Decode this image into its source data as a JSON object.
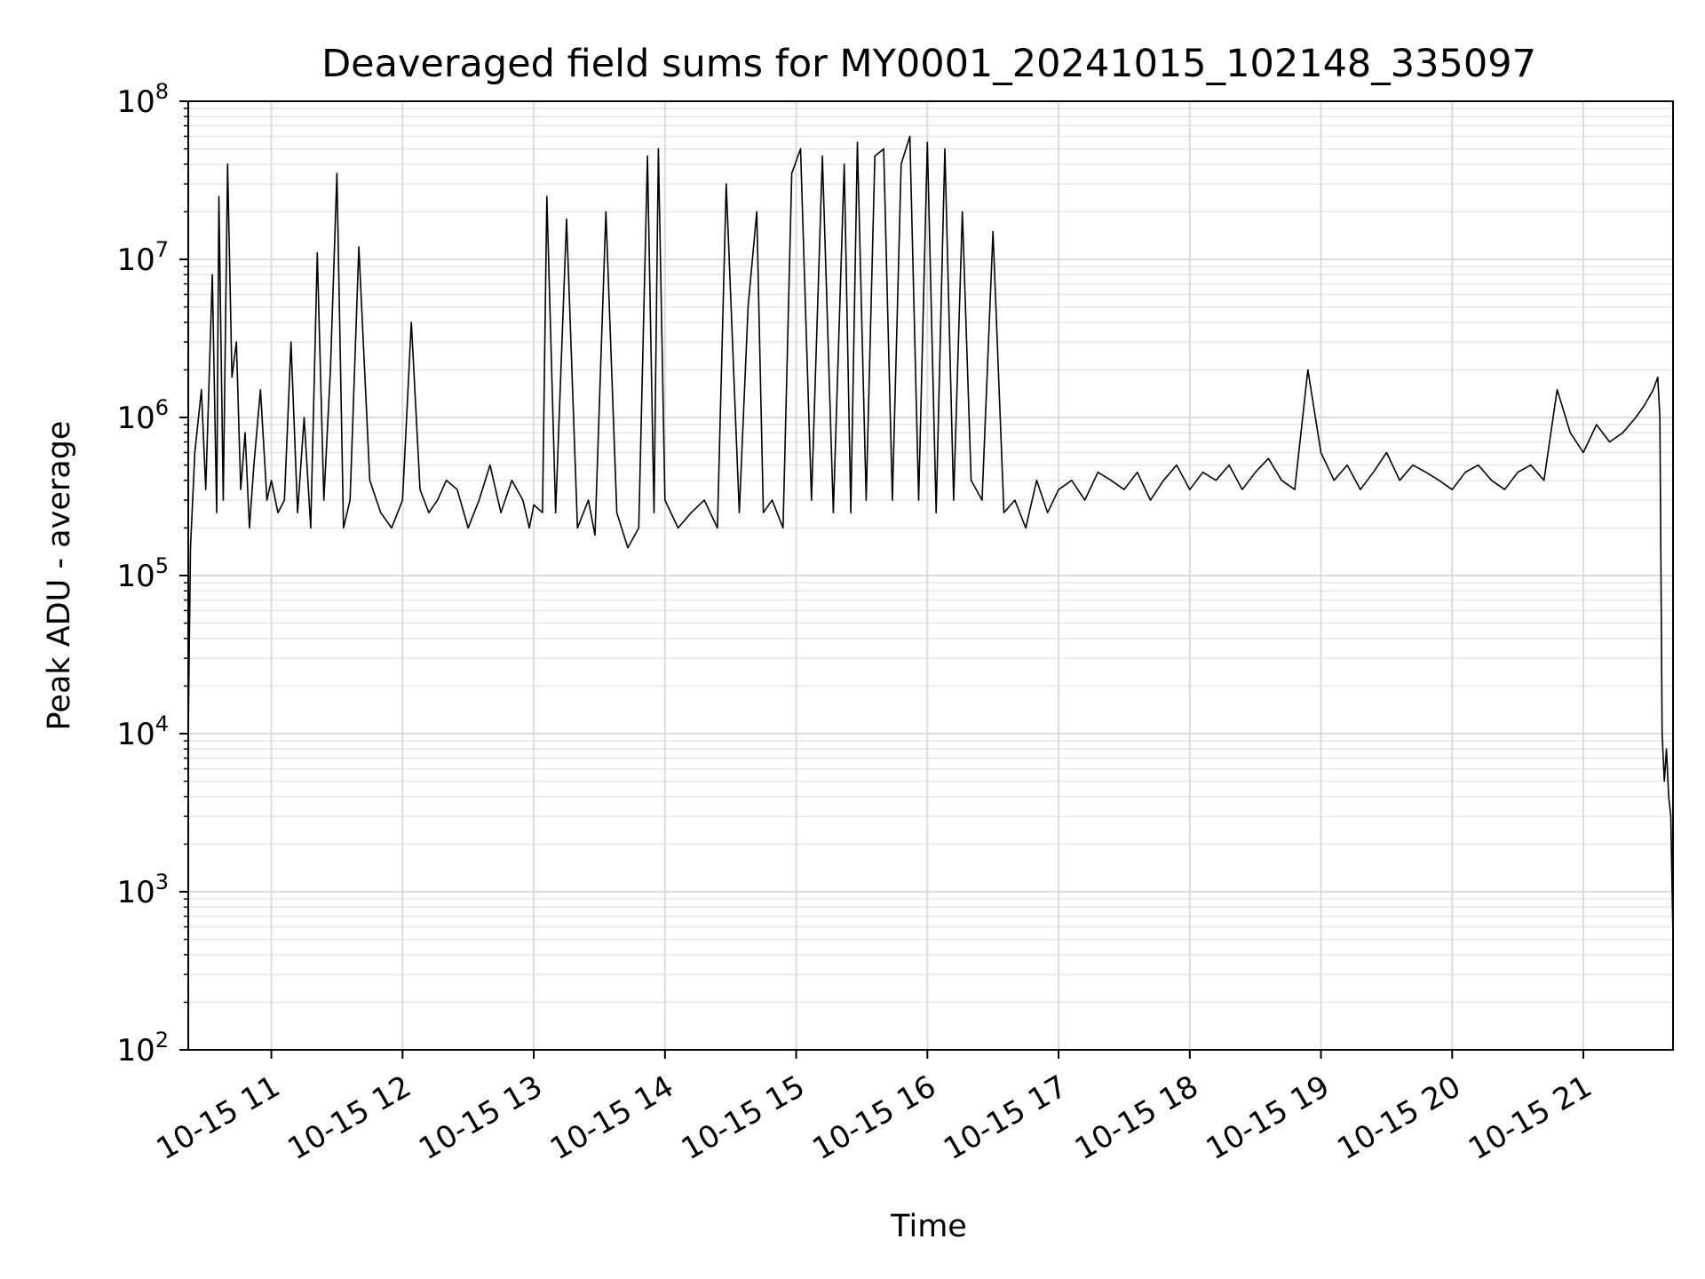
{
  "chart_data": {
    "type": "line",
    "title": "Deaveraged field sums for MY0001_20241015_102148_335097",
    "xlabel": "Time",
    "ylabel": "Peak ADU - average",
    "yscale": "log",
    "ylim": [
      100,
      100000000
    ],
    "xlim": [
      "10-15 10:22",
      "10-15 21:41"
    ],
    "grid": true,
    "grid_minor": true,
    "line_color": "#000000",
    "xticks": [
      {
        "t": "10-15 11:00",
        "label": "10-15 11"
      },
      {
        "t": "10-15 12:00",
        "label": "10-15 12"
      },
      {
        "t": "10-15 13:00",
        "label": "10-15 13"
      },
      {
        "t": "10-15 14:00",
        "label": "10-15 14"
      },
      {
        "t": "10-15 15:00",
        "label": "10-15 15"
      },
      {
        "t": "10-15 16:00",
        "label": "10-15 16"
      },
      {
        "t": "10-15 17:00",
        "label": "10-15 17"
      },
      {
        "t": "10-15 18:00",
        "label": "10-15 18"
      },
      {
        "t": "10-15 19:00",
        "label": "10-15 19"
      },
      {
        "t": "10-15 20:00",
        "label": "10-15 20"
      },
      {
        "t": "10-15 21:00",
        "label": "10-15 21"
      }
    ],
    "yticks": [
      {
        "value": 100,
        "base": "10",
        "exp": "2"
      },
      {
        "value": 1000,
        "base": "10",
        "exp": "3"
      },
      {
        "value": 10000,
        "base": "10",
        "exp": "4"
      },
      {
        "value": 100000,
        "base": "10",
        "exp": "5"
      },
      {
        "value": 1000000,
        "base": "10",
        "exp": "6"
      },
      {
        "value": 10000000,
        "base": "10",
        "exp": "7"
      },
      {
        "value": 100000000,
        "base": "10",
        "exp": "8"
      }
    ],
    "series": [
      {
        "x": [
          "10-15 10:22",
          "10-15 10:23",
          "10-15 10:25",
          "10-15 10:28",
          "10-15 10:30",
          "10-15 10:33",
          "10-15 10:35",
          "10-15 10:36",
          "10-15 10:38",
          "10-15 10:40",
          "10-15 10:42",
          "10-15 10:44",
          "10-15 10:46",
          "10-15 10:48",
          "10-15 10:50",
          "10-15 10:52",
          "10-15 10:55",
          "10-15 10:58",
          "10-15 11:00",
          "10-15 11:03",
          "10-15 11:06",
          "10-15 11:09",
          "10-15 11:12",
          "10-15 11:15",
          "10-15 11:18",
          "10-15 11:21",
          "10-15 11:24",
          "10-15 11:27",
          "10-15 11:30",
          "10-15 11:33",
          "10-15 11:36",
          "10-15 11:40",
          "10-15 11:45",
          "10-15 11:50",
          "10-15 11:55",
          "10-15 12:00",
          "10-15 12:04",
          "10-15 12:08",
          "10-15 12:12",
          "10-15 12:16",
          "10-15 12:20",
          "10-15 12:25",
          "10-15 12:30",
          "10-15 12:35",
          "10-15 12:40",
          "10-15 12:45",
          "10-15 12:50",
          "10-15 12:55",
          "10-15 12:58",
          "10-15 13:00",
          "10-15 13:04",
          "10-15 13:06",
          "10-15 13:10",
          "10-15 13:15",
          "10-15 13:20",
          "10-15 13:25",
          "10-15 13:28",
          "10-15 13:33",
          "10-15 13:38",
          "10-15 13:43",
          "10-15 13:48",
          "10-15 13:52",
          "10-15 13:55",
          "10-15 13:57",
          "10-15 14:00",
          "10-15 14:06",
          "10-15 14:12",
          "10-15 14:18",
          "10-15 14:24",
          "10-15 14:28",
          "10-15 14:34",
          "10-15 14:38",
          "10-15 14:42",
          "10-15 14:45",
          "10-15 14:49",
          "10-15 14:54",
          "10-15 14:58",
          "10-15 15:02",
          "10-15 15:07",
          "10-15 15:12",
          "10-15 15:17",
          "10-15 15:22",
          "10-15 15:25",
          "10-15 15:28",
          "10-15 15:32",
          "10-15 15:36",
          "10-15 15:40",
          "10-15 15:44",
          "10-15 15:48",
          "10-15 15:52",
          "10-15 15:56",
          "10-15 16:00",
          "10-15 16:04",
          "10-15 16:08",
          "10-15 16:12",
          "10-15 16:16",
          "10-15 16:20",
          "10-15 16:25",
          "10-15 16:30",
          "10-15 16:35",
          "10-15 16:40",
          "10-15 16:45",
          "10-15 16:50",
          "10-15 16:55",
          "10-15 17:00",
          "10-15 17:06",
          "10-15 17:12",
          "10-15 17:18",
          "10-15 17:24",
          "10-15 17:30",
          "10-15 17:36",
          "10-15 17:42",
          "10-15 17:48",
          "10-15 17:54",
          "10-15 18:00",
          "10-15 18:06",
          "10-15 18:12",
          "10-15 18:18",
          "10-15 18:24",
          "10-15 18:30",
          "10-15 18:36",
          "10-15 18:42",
          "10-15 18:48",
          "10-15 18:54",
          "10-15 19:00",
          "10-15 19:06",
          "10-15 19:12",
          "10-15 19:18",
          "10-15 19:24",
          "10-15 19:30",
          "10-15 19:36",
          "10-15 19:42",
          "10-15 19:48",
          "10-15 19:54",
          "10-15 20:00",
          "10-15 20:06",
          "10-15 20:12",
          "10-15 20:18",
          "10-15 20:24",
          "10-15 20:30",
          "10-15 20:36",
          "10-15 20:42",
          "10-15 20:48",
          "10-15 20:54",
          "10-15 21:00",
          "10-15 21:06",
          "10-15 21:12",
          "10-15 21:18",
          "10-15 21:24",
          "10-15 21:28",
          "10-15 21:32",
          "10-15 21:34",
          "10-15 21:35",
          "10-15 21:36",
          "10-15 21:37",
          "10-15 21:38",
          "10-15 21:39",
          "10-15 21:40",
          "10-15 21:41"
        ],
        "values": [
          10000,
          150000,
          600000,
          1500000,
          350000,
          8000000,
          250000,
          25000000,
          300000,
          40000000,
          1800000,
          3000000,
          350000,
          800000,
          200000,
          500000,
          1500000,
          300000,
          400000,
          250000,
          300000,
          3000000,
          250000,
          1000000,
          200000,
          11000000,
          300000,
          2000000,
          35000000,
          200000,
          300000,
          12000000,
          400000,
          250000,
          200000,
          300000,
          4000000,
          350000,
          250000,
          300000,
          400000,
          350000,
          200000,
          300000,
          500000,
          250000,
          400000,
          300000,
          200000,
          280000,
          250000,
          25000000,
          250000,
          18000000,
          200000,
          300000,
          180000,
          20000000,
          250000,
          150000,
          200000,
          45000000,
          250000,
          50000000,
          300000,
          200000,
          250000,
          300000,
          200000,
          30000000,
          250000,
          5000000,
          20000000,
          250000,
          300000,
          200000,
          35000000,
          50000000,
          300000,
          45000000,
          250000,
          40000000,
          250000,
          55000000,
          300000,
          45000000,
          50000000,
          300000,
          40000000,
          60000000,
          300000,
          55000000,
          250000,
          50000000,
          300000,
          20000000,
          400000,
          300000,
          15000000,
          250000,
          300000,
          200000,
          400000,
          250000,
          350000,
          400000,
          300000,
          450000,
          400000,
          350000,
          450000,
          300000,
          400000,
          500000,
          350000,
          450000,
          400000,
          500000,
          350000,
          450000,
          550000,
          400000,
          350000,
          2000000,
          600000,
          400000,
          500000,
          350000,
          450000,
          600000,
          400000,
          500000,
          450000,
          400000,
          350000,
          450000,
          500000,
          400000,
          350000,
          450000,
          500000,
          400000,
          1500000,
          800000,
          600000,
          900000,
          700000,
          800000,
          1000000,
          1200000,
          1500000,
          1800000,
          1000000,
          10000,
          5000,
          8000,
          4000,
          3000,
          500
        ]
      }
    ]
  }
}
